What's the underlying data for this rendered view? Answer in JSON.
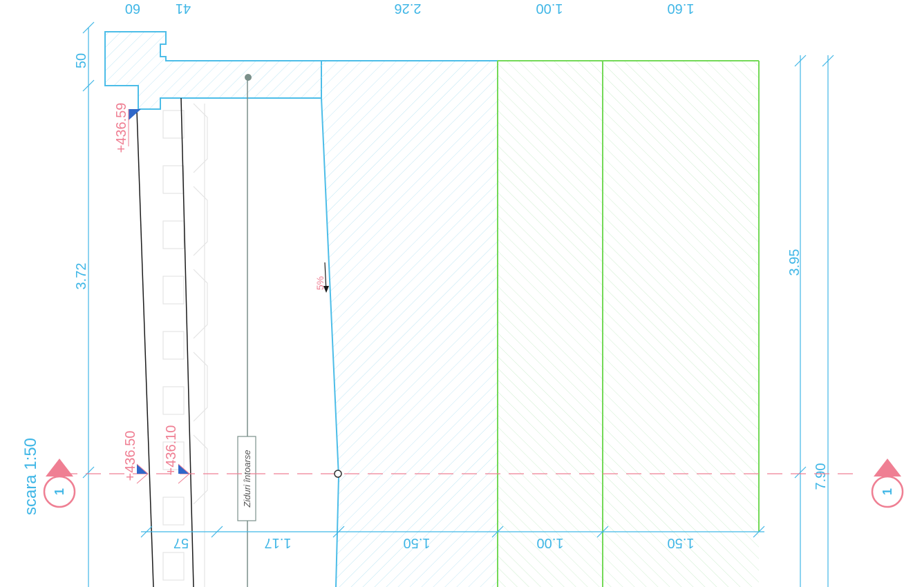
{
  "scale_label": "scara 1:50",
  "dimensions": {
    "top_partial": [
      "60",
      "41",
      "2.26",
      "1.00",
      "1.60"
    ],
    "left_top": "50",
    "left_mid": "3.72",
    "right_mid": "3.95",
    "right_total": "7.90",
    "bottom": [
      "57",
      "1.17",
      "1.50",
      "1.00",
      "1.50"
    ]
  },
  "elevations": {
    "top": "+436.59",
    "mid_left": "+436.50",
    "mid_right": "+436.10"
  },
  "note_label": "Ziduri întoarse",
  "slope_label": "5%",
  "section_markers": [
    "1",
    "1"
  ],
  "colors": {
    "dimension": "#3fb6e6",
    "elevation": "#ef7f93",
    "slab_outline": "#4cbde8",
    "green_lines": "#73d957"
  }
}
